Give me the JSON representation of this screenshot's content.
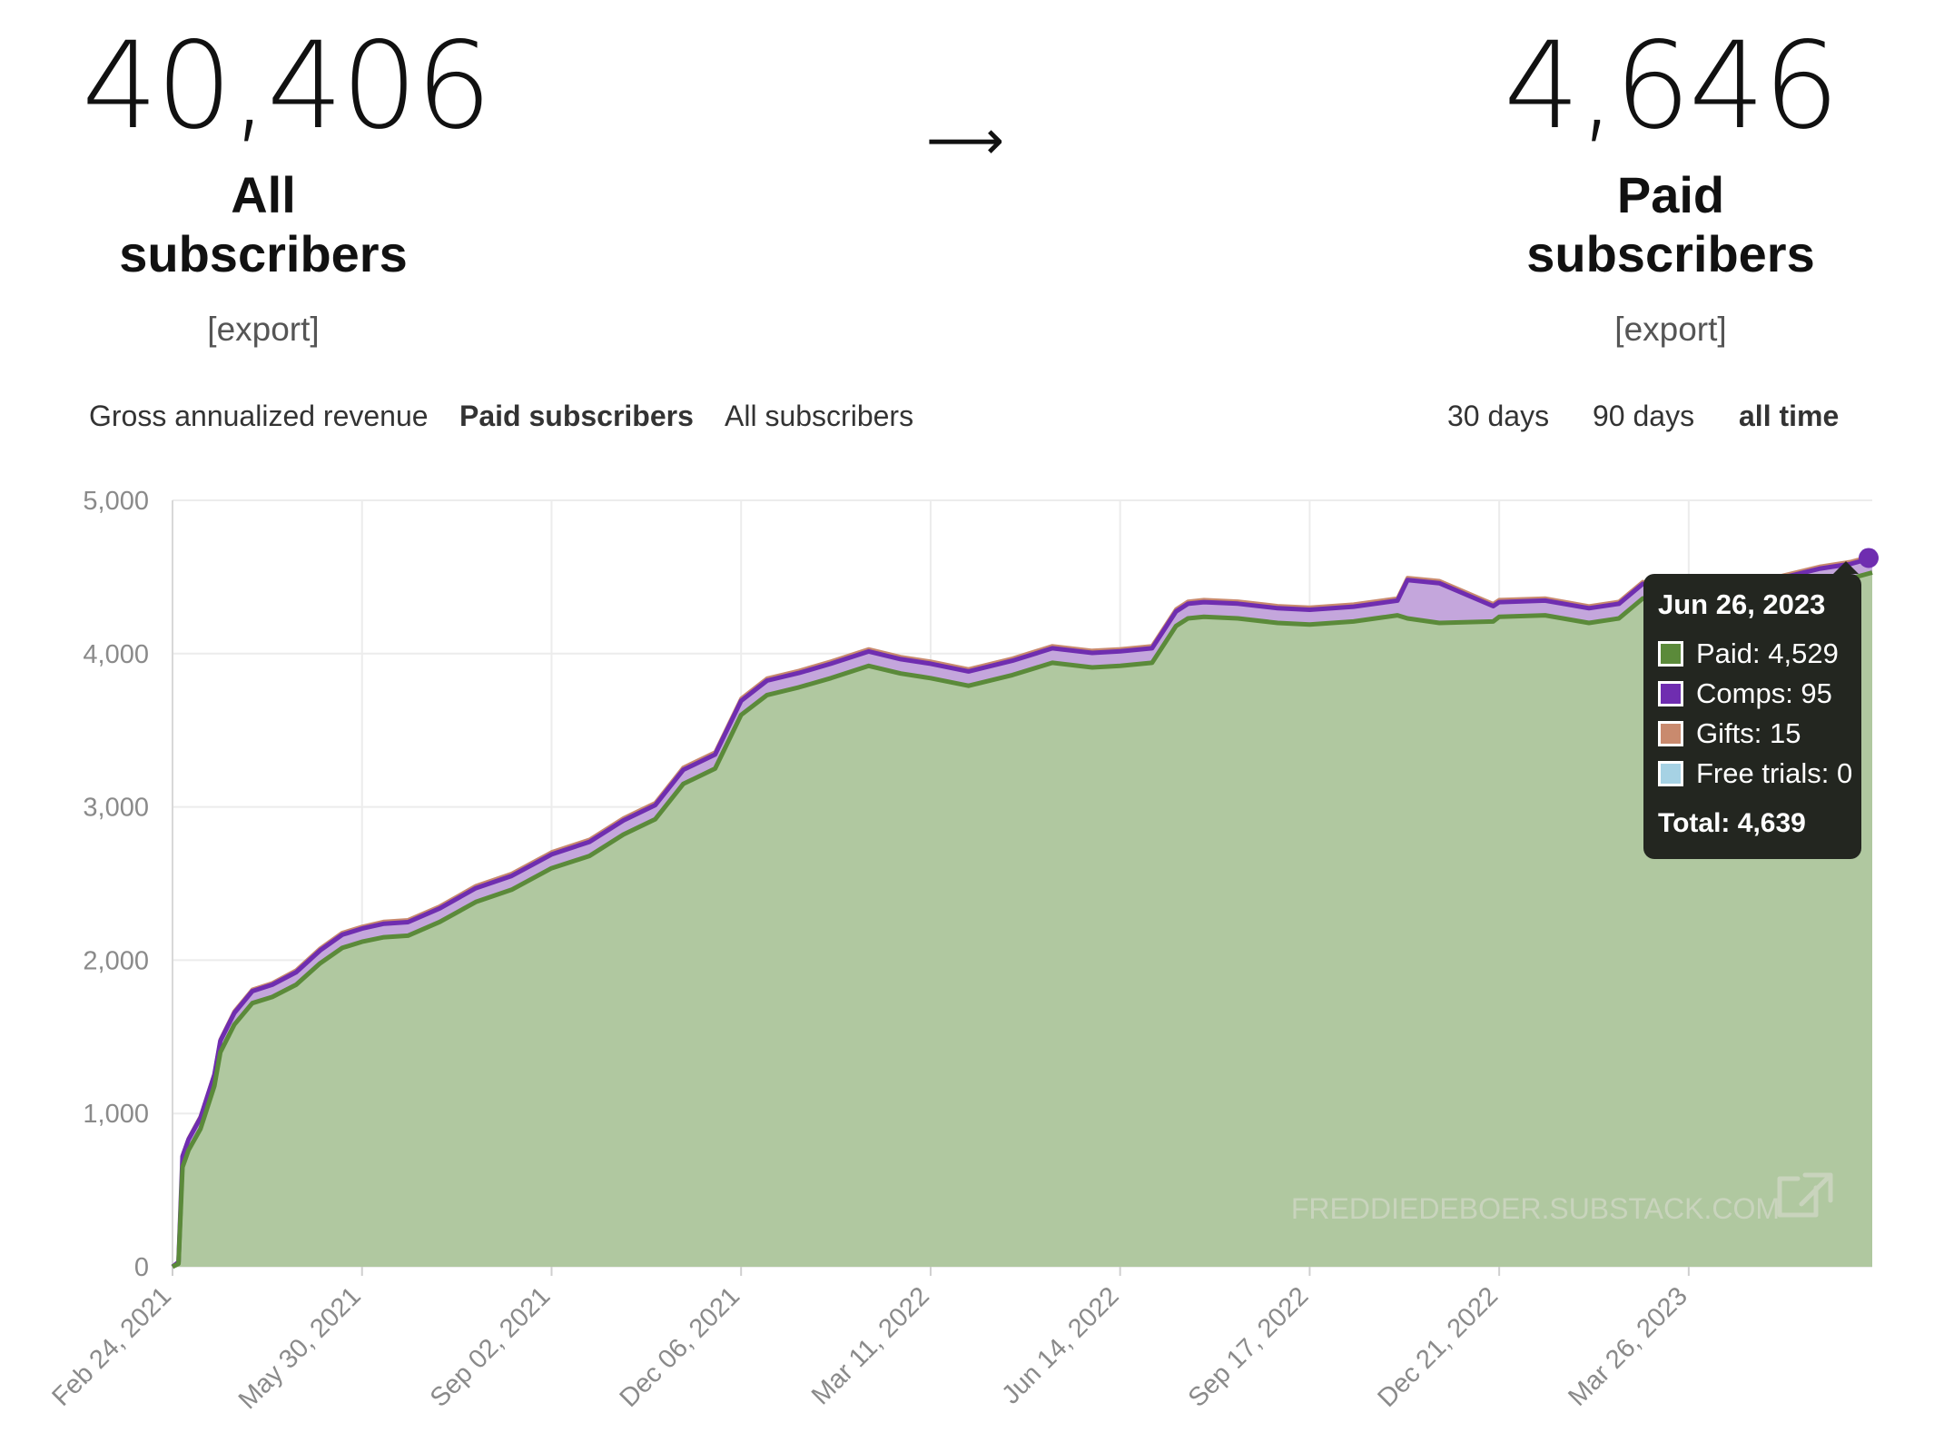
{
  "stats": {
    "all": {
      "value": "40,406",
      "label": "All subscribers",
      "export": "[export]"
    },
    "arrow": "⟶",
    "paid": {
      "value": "4,646",
      "label": "Paid subscribers",
      "export": "[export]"
    }
  },
  "metric_tabs": [
    "Gross annualized revenue",
    "Paid subscribers",
    "All subscribers"
  ],
  "metric_selected": "Paid subscribers",
  "range_tabs": [
    "30 days",
    "90 days",
    "all time"
  ],
  "range_selected": "all time",
  "colors": {
    "paid": "#5b8a3a",
    "paid_fill": "#b0c8a0",
    "comps": "#6f2db0",
    "comps_fill": "#c4a6dc",
    "gifts": "#c98a6e",
    "gifts_fill": "#dba993",
    "free_trials": "#a6d2e4",
    "tooltip_bg": "#232620"
  },
  "tooltip": {
    "date": "Jun 26, 2023",
    "rows": [
      {
        "label": "Paid: 4,529",
        "color": "#5b8a3a"
      },
      {
        "label": "Comps: 95",
        "color": "#6f2db0"
      },
      {
        "label": "Gifts: 15",
        "color": "#c98a6e"
      },
      {
        "label": "Free trials: 0",
        "color": "#a6d2e4"
      }
    ],
    "total": "Total: 4,639"
  },
  "watermark": "FREDDIEDEBOER.SUBSTACK.COM",
  "chart_data": {
    "type": "area",
    "stacked": true,
    "title": "",
    "xlabel": "",
    "ylabel": "",
    "ylim": [
      0,
      5000
    ],
    "yticks": [
      0,
      1000,
      2000,
      3000,
      4000,
      5000
    ],
    "ytick_labels": [
      "0",
      "1,000",
      "2,000",
      "3,000",
      "4,000",
      "5,000"
    ],
    "xticks": [
      "2021-02-24",
      "2021-05-30",
      "2021-09-02",
      "2021-12-06",
      "2022-03-11",
      "2022-06-14",
      "2022-09-17",
      "2022-12-21",
      "2023-03-26"
    ],
    "xtick_labels": [
      "Feb 24, 2021",
      "May 30, 2021",
      "Sep 02, 2021",
      "Dec 06, 2021",
      "Mar 11, 2022",
      "Jun 14, 2022",
      "Sep 17, 2022",
      "Dec 21, 2022",
      "Mar 26, 2023"
    ],
    "xlim": [
      "2021-02-24",
      "2023-06-26"
    ],
    "grid": true,
    "x": [
      "2021-02-24",
      "2021-02-27",
      "2021-03-01",
      "2021-03-04",
      "2021-03-10",
      "2021-03-17",
      "2021-03-20",
      "2021-03-27",
      "2021-04-05",
      "2021-04-15",
      "2021-04-27",
      "2021-05-09",
      "2021-05-20",
      "2021-05-30",
      "2021-06-10",
      "2021-06-22",
      "2021-07-08",
      "2021-07-26",
      "2021-08-13",
      "2021-09-02",
      "2021-09-21",
      "2021-10-08",
      "2021-10-24",
      "2021-11-07",
      "2021-11-23",
      "2021-12-06",
      "2021-12-19",
      "2022-01-04",
      "2022-01-20",
      "2022-02-08",
      "2022-02-24",
      "2022-03-11",
      "2022-03-30",
      "2022-04-21",
      "2022-05-11",
      "2022-05-31",
      "2022-06-14",
      "2022-06-30",
      "2022-07-12",
      "2022-07-18",
      "2022-07-26",
      "2022-08-12",
      "2022-09-01",
      "2022-09-17",
      "2022-10-09",
      "2022-10-31",
      "2022-11-05",
      "2022-11-21",
      "2022-12-18",
      "2022-12-21",
      "2023-01-13",
      "2023-02-04",
      "2023-02-19",
      "2023-03-03",
      "2023-03-16",
      "2023-03-26",
      "2023-04-15",
      "2023-05-12",
      "2023-05-31",
      "2023-06-15",
      "2023-06-26"
    ],
    "series": [
      {
        "name": "Paid",
        "values": [
          0,
          20,
          650,
          760,
          900,
          1180,
          1400,
          1580,
          1720,
          1760,
          1840,
          1980,
          2080,
          2120,
          2150,
          2160,
          2250,
          2380,
          2460,
          2600,
          2680,
          2820,
          2920,
          3150,
          3250,
          3600,
          3730,
          3780,
          3840,
          3920,
          3870,
          3840,
          3790,
          3860,
          3940,
          3910,
          3920,
          3940,
          4180,
          4230,
          4240,
          4230,
          4200,
          4190,
          4210,
          4250,
          4230,
          4200,
          4210,
          4240,
          4250,
          4200,
          4230,
          4360,
          4300,
          4310,
          4340,
          4400,
          4460,
          4490,
          4529
        ]
      },
      {
        "name": "Comps",
        "values": [
          0,
          10,
          70,
          70,
          72,
          72,
          74,
          76,
          78,
          80,
          82,
          84,
          86,
          86,
          88,
          88,
          88,
          90,
          90,
          90,
          92,
          92,
          92,
          92,
          92,
          92,
          94,
          94,
          94,
          94,
          94,
          94,
          94,
          94,
          95,
          95,
          95,
          95,
          95,
          95,
          96,
          96,
          96,
          96,
          96,
          96,
          250,
          260,
          100,
          96,
          96,
          96,
          95,
          95,
          95,
          95,
          95,
          95,
          95,
          95,
          95
        ]
      },
      {
        "name": "Gifts",
        "values": [
          0,
          0,
          8,
          8,
          10,
          10,
          10,
          12,
          12,
          12,
          14,
          14,
          14,
          14,
          15,
          15,
          15,
          16,
          16,
          16,
          16,
          16,
          16,
          16,
          16,
          16,
          16,
          16,
          16,
          16,
          16,
          16,
          16,
          16,
          16,
          16,
          16,
          16,
          16,
          16,
          16,
          16,
          16,
          16,
          16,
          16,
          16,
          16,
          16,
          16,
          16,
          15,
          15,
          15,
          15,
          15,
          15,
          15,
          15,
          15,
          15
        ]
      },
      {
        "name": "Free trials",
        "values": [
          0,
          0,
          0,
          0,
          0,
          0,
          0,
          0,
          0,
          0,
          0,
          0,
          0,
          0,
          0,
          0,
          0,
          0,
          0,
          0,
          0,
          0,
          0,
          0,
          0,
          0,
          0,
          0,
          0,
          0,
          0,
          0,
          0,
          0,
          0,
          0,
          0,
          0,
          0,
          0,
          0,
          0,
          0,
          0,
          0,
          0,
          0,
          0,
          0,
          0,
          0,
          0,
          0,
          0,
          0,
          0,
          0,
          0,
          0,
          0,
          0
        ]
      }
    ]
  }
}
